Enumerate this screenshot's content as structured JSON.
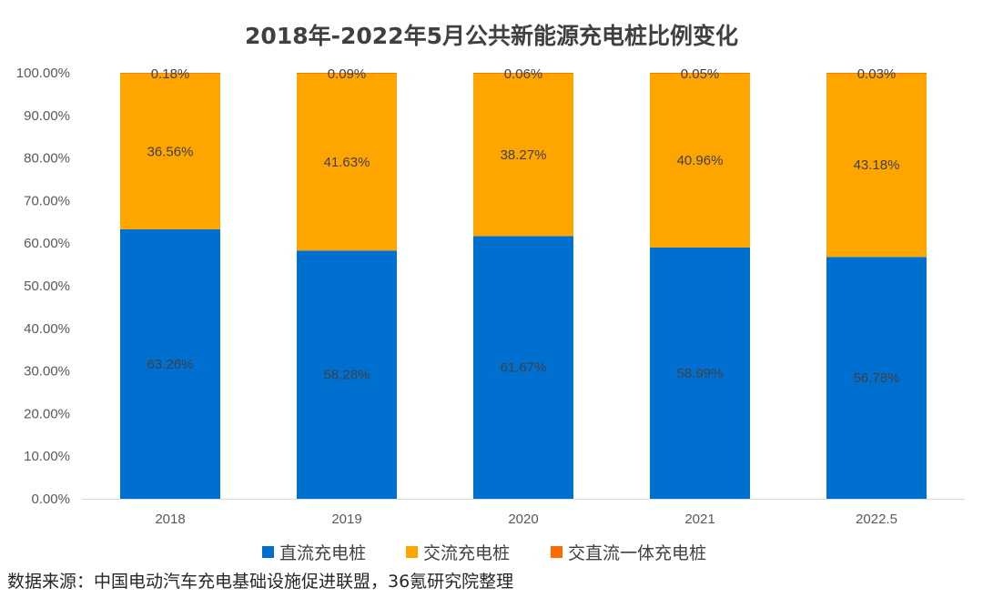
{
  "chart_data": {
    "type": "bar",
    "stacked": true,
    "title": "2018年-2022年5月公共新能源充电桩比例变化",
    "categories": [
      "2018",
      "2019",
      "2020",
      "2021",
      "2022.5"
    ],
    "series": [
      {
        "name": "直流充电桩",
        "color": "#0070d0",
        "values": [
          63.26,
          58.28,
          61.67,
          58.99,
          56.78
        ],
        "labels": [
          "63.26%",
          "58.28%",
          "61.67%",
          "58.99%",
          "56.78%"
        ]
      },
      {
        "name": "交流充电桩",
        "color": "#ffa500",
        "values": [
          36.56,
          41.63,
          38.27,
          40.96,
          43.18
        ],
        "labels": [
          "36.56%",
          "41.63%",
          "38.27%",
          "40.96%",
          "43.18%"
        ]
      },
      {
        "name": "交直流一体充电桩",
        "color": "#ff6a00",
        "values": [
          0.18,
          0.09,
          0.06,
          0.05,
          0.03
        ],
        "labels": [
          "0.18%",
          "0.09%",
          "0.06%",
          "0.05%",
          "0.03%"
        ]
      }
    ],
    "ylim": [
      0,
      100
    ],
    "yticks": [
      "0.00%",
      "10.00%",
      "20.00%",
      "30.00%",
      "40.00%",
      "50.00%",
      "60.00%",
      "70.00%",
      "80.00%",
      "90.00%",
      "100.00%"
    ],
    "legend_position": "bottom",
    "grid": false
  },
  "source_text": "数据来源：中国电动汽车充电基础设施促进联盟，36氪研究院整理"
}
